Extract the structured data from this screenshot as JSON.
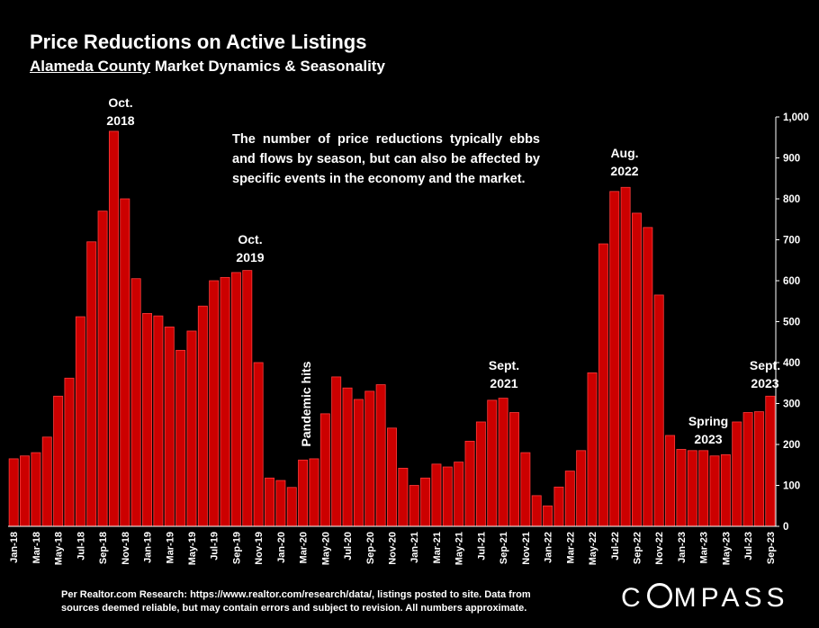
{
  "header": {
    "title": "Price Reductions on Active Listings",
    "subtitle_underlined": "Alameda County",
    "subtitle_rest": " Market Dynamics & Seasonality"
  },
  "note": "The number of price reductions typically ebbs and flows by season, but can also be affected by specific events in the economy and the market.",
  "annotations": {
    "oct2018": [
      "Oct.",
      "2018"
    ],
    "oct2019": [
      "Oct.",
      "2019"
    ],
    "pandemic": "Pandemic hits",
    "sept2021": [
      "Sept.",
      "2021"
    ],
    "aug2022": [
      "Aug.",
      "2022"
    ],
    "spring2023": [
      "Spring",
      "2023"
    ],
    "sept2023": [
      "Sept.",
      "2023"
    ]
  },
  "footer": {
    "line1": "Per Realtor.com Research:  https://www.realtor.com/research/data/, listings posted to site. Data from",
    "line2": "sources deemed reliable, but may contain errors and subject to revision. All numbers approximate."
  },
  "logo": "COMPASS",
  "colors": {
    "bar": "#cc0000",
    "bar_edge": "#ff3b3b",
    "background": "#000000",
    "text": "#ffffff"
  },
  "chart_data": {
    "type": "bar",
    "ylim": [
      0,
      1000
    ],
    "yticks": [
      0,
      100,
      200,
      300,
      400,
      500,
      600,
      700,
      800,
      900,
      1000
    ],
    "ytick_labels": [
      "0",
      "100",
      "200",
      "300",
      "400",
      "500",
      "600",
      "700",
      "800",
      "900",
      "1,000"
    ],
    "categories": [
      "Jan-18",
      "Feb-18",
      "Mar-18",
      "Apr-18",
      "May-18",
      "Jun-18",
      "Jul-18",
      "Aug-18",
      "Sep-18",
      "Oct-18",
      "Nov-18",
      "Dec-18",
      "Jan-19",
      "Feb-19",
      "Mar-19",
      "Apr-19",
      "May-19",
      "Jun-19",
      "Jul-19",
      "Aug-19",
      "Sep-19",
      "Oct-19",
      "Nov-19",
      "Dec-19",
      "Jan-20",
      "Feb-20",
      "Mar-20",
      "Apr-20",
      "May-20",
      "Jun-20",
      "Jul-20",
      "Aug-20",
      "Sep-20",
      "Oct-20",
      "Nov-20",
      "Dec-20",
      "Jan-21",
      "Feb-21",
      "Mar-21",
      "Apr-21",
      "May-21",
      "Jun-21",
      "Jul-21",
      "Aug-21",
      "Sep-21",
      "Oct-21",
      "Nov-21",
      "Dec-21",
      "Jan-22",
      "Feb-22",
      "Mar-22",
      "Apr-22",
      "May-22",
      "Jun-22",
      "Jul-22",
      "Aug-22",
      "Sep-22",
      "Oct-22",
      "Nov-22",
      "Dec-22",
      "Jan-23",
      "Feb-23",
      "Mar-23",
      "Apr-23",
      "May-23",
      "Jun-23",
      "Jul-23",
      "Aug-23",
      "Sep-23"
    ],
    "values": [
      165,
      172,
      180,
      218,
      318,
      362,
      512,
      695,
      770,
      965,
      800,
      605,
      520,
      514,
      487,
      430,
      477,
      538,
      600,
      608,
      620,
      625,
      400,
      118,
      112,
      95,
      162,
      165,
      275,
      365,
      338,
      310,
      330,
      346,
      240,
      142,
      100,
      118,
      152,
      145,
      157,
      208,
      255,
      308,
      313,
      278,
      180,
      75,
      50,
      96,
      135,
      185,
      375,
      690,
      818,
      828,
      765,
      730,
      565,
      222,
      188,
      185,
      185,
      172,
      175,
      255,
      278,
      280,
      318
    ],
    "xtick_labels": [
      "Jan-18",
      "Mar-18",
      "May-18",
      "Jul-18",
      "Sep-18",
      "Nov-18",
      "Jan-19",
      "Mar-19",
      "May-19",
      "Jul-19",
      "Sep-19",
      "Nov-19",
      "Jan-20",
      "Mar-20",
      "May-20",
      "Jul-20",
      "Sep-20",
      "Nov-20",
      "Jan-21",
      "Mar-21",
      "May-21",
      "Jul-21",
      "Sep-21",
      "Nov-21",
      "Jan-22",
      "Mar-22",
      "May-22",
      "Jul-22",
      "Sep-22",
      "Nov-22",
      "Jan-23",
      "Mar-23",
      "May-23",
      "Jul-23",
      "Sep-23"
    ],
    "xtick_every": 2,
    "grid": false
  }
}
